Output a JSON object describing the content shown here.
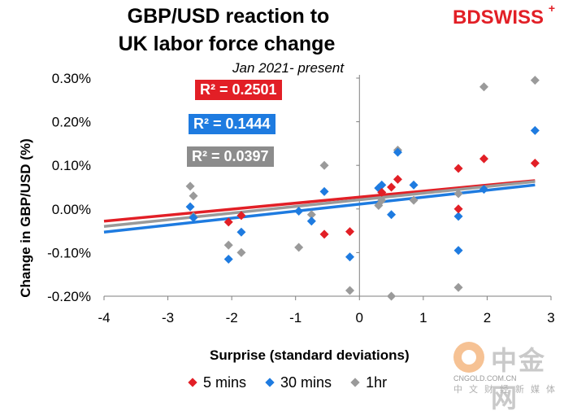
{
  "header": {
    "title_line1": "GBP/USD reaction to",
    "title_line2": "UK labor force change",
    "subtitle": "Jan 2021- present",
    "brand": "BDSWISS",
    "brand_plus": "+"
  },
  "r2_labels": [
    "R² = 0.2501",
    "R² = 0.1444",
    "R² = 0.0397"
  ],
  "legend": {
    "items": [
      "5 mins",
      "30 mins",
      "1hr"
    ]
  },
  "watermark": {
    "cn": "中金网",
    "url": "CNGOLD.COM.CN",
    "sub": "中文财经新媒体"
  },
  "colors": {
    "five_min": "#e21f26",
    "thirty_min": "#1e7be0",
    "one_hr": "#9a9a9a",
    "axis": "#7f7f7f"
  },
  "chart_data": {
    "type": "scatter",
    "xlabel": "Surprise (standard deviations)",
    "ylabel": "Change in GBP/USD  (%)",
    "xlim": [
      -4,
      3
    ],
    "ylim": [
      -0.2,
      0.3
    ],
    "xticks": [
      -4,
      -3,
      -2,
      -1,
      0,
      1,
      2,
      3
    ],
    "xtick_labels": [
      "-4",
      "-3",
      "-2",
      "-1",
      "0",
      "1",
      "2",
      "3"
    ],
    "yticks": [
      -0.2,
      -0.1,
      0.0,
      0.1,
      0.2,
      0.3
    ],
    "ytick_labels": [
      "-0.20%",
      "-0.10%",
      "0.00%",
      "0.10%",
      "0.20%",
      "0.30%"
    ],
    "legend_position": "bottom",
    "series": [
      {
        "name": "5 mins",
        "color": "#e21f26",
        "points": [
          [
            -2.05,
            -0.03
          ],
          [
            -1.85,
            -0.015
          ],
          [
            -0.55,
            -0.058
          ],
          [
            -0.15,
            -0.052
          ],
          [
            0.35,
            0.038
          ],
          [
            0.5,
            0.05
          ],
          [
            0.6,
            0.068
          ],
          [
            1.55,
            0.093
          ],
          [
            1.55,
            0.0
          ],
          [
            1.95,
            0.115
          ],
          [
            2.75,
            0.105
          ]
        ],
        "trend": {
          "x": [
            -4,
            2.75
          ],
          "y": [
            -0.028,
            0.065
          ],
          "r2": 0.2501
        }
      },
      {
        "name": "30 mins",
        "color": "#1e7be0",
        "points": [
          [
            -2.65,
            0.005
          ],
          [
            -2.6,
            -0.02
          ],
          [
            -2.05,
            -0.115
          ],
          [
            -1.85,
            -0.053
          ],
          [
            -0.95,
            -0.005
          ],
          [
            -0.75,
            -0.028
          ],
          [
            -0.55,
            0.04
          ],
          [
            -0.15,
            -0.11
          ],
          [
            0.3,
            0.048
          ],
          [
            0.35,
            0.055
          ],
          [
            0.5,
            -0.013
          ],
          [
            0.6,
            0.13
          ],
          [
            0.85,
            0.055
          ],
          [
            1.55,
            -0.017
          ],
          [
            1.55,
            -0.095
          ],
          [
            1.95,
            0.045
          ],
          [
            2.75,
            0.18
          ]
        ],
        "trend": {
          "x": [
            -4,
            2.75
          ],
          "y": [
            -0.053,
            0.055
          ],
          "r2": 0.1444
        }
      },
      {
        "name": "1hr",
        "color": "#9a9a9a",
        "points": [
          [
            -2.65,
            0.052
          ],
          [
            -2.6,
            0.03
          ],
          [
            -2.6,
            -0.017
          ],
          [
            -2.05,
            -0.083
          ],
          [
            -1.85,
            -0.1
          ],
          [
            -0.95,
            -0.088
          ],
          [
            -0.75,
            -0.013
          ],
          [
            -0.55,
            0.1
          ],
          [
            -0.15,
            -0.187
          ],
          [
            0.3,
            0.008
          ],
          [
            0.35,
            0.02
          ],
          [
            0.5,
            -0.2
          ],
          [
            0.6,
            0.135
          ],
          [
            0.85,
            0.02
          ],
          [
            1.55,
            0.035
          ],
          [
            1.55,
            -0.18
          ],
          [
            1.95,
            0.28
          ],
          [
            2.75,
            0.295
          ]
        ],
        "trend": {
          "x": [
            -4,
            2.75
          ],
          "y": [
            -0.04,
            0.063
          ],
          "r2": 0.0397
        }
      }
    ]
  }
}
